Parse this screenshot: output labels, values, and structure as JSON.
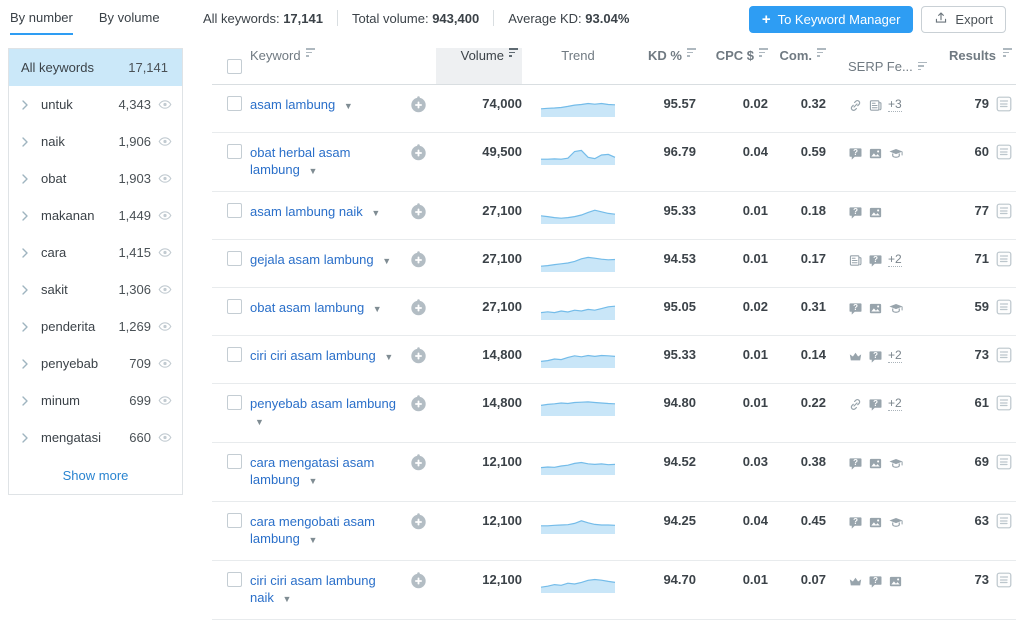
{
  "topbar": {
    "tabs": [
      {
        "label": "By number",
        "active": true
      },
      {
        "label": "By volume",
        "active": false
      }
    ],
    "stats": [
      {
        "label": "All keywords:",
        "value": "17,141"
      },
      {
        "label": "Total volume:",
        "value": "943,400"
      },
      {
        "label": "Average KD:",
        "value": "93.04%"
      }
    ],
    "keyword_manager_button": "To Keyword Manager",
    "export_button": "Export"
  },
  "sidebar": {
    "header": {
      "label": "All keywords",
      "count": "17,141"
    },
    "items": [
      {
        "label": "untuk",
        "count": "4,343"
      },
      {
        "label": "naik",
        "count": "1,906"
      },
      {
        "label": "obat",
        "count": "1,903"
      },
      {
        "label": "makanan",
        "count": "1,449"
      },
      {
        "label": "cara",
        "count": "1,415"
      },
      {
        "label": "sakit",
        "count": "1,306"
      },
      {
        "label": "penderita",
        "count": "1,269"
      },
      {
        "label": "penyebab",
        "count": "709"
      },
      {
        "label": "minum",
        "count": "699"
      },
      {
        "label": "mengatasi",
        "count": "660"
      }
    ],
    "show_more": "Show more"
  },
  "table": {
    "columns": {
      "keyword": "Keyword",
      "volume": "Volume",
      "trend": "Trend",
      "kd": "KD %",
      "cpc": "CPC $",
      "com": "Com.",
      "serp": "SERP Fe...",
      "results": "Results"
    },
    "rows": [
      {
        "keyword": "asam lambung",
        "volume": "74,000",
        "kd": "95.57",
        "cpc": "0.02",
        "com": "0.32",
        "serp_features": [
          "link",
          "news"
        ],
        "serp_more": "+3",
        "results": "79",
        "trend": [
          0.45,
          0.48,
          0.5,
          0.53,
          0.6,
          0.68,
          0.72,
          0.78,
          0.74,
          0.78,
          0.72,
          0.7
        ]
      },
      {
        "keyword": "obat herbal asam lambung",
        "volume": "49,500",
        "kd": "96.79",
        "cpc": "0.04",
        "com": "0.59",
        "serp_features": [
          "question",
          "image",
          "graduation"
        ],
        "serp_more": null,
        "results": "60",
        "trend": [
          0.3,
          0.3,
          0.32,
          0.3,
          0.36,
          0.78,
          0.85,
          0.42,
          0.34,
          0.56,
          0.6,
          0.42
        ]
      },
      {
        "keyword": "asam lambung naik",
        "volume": "27,100",
        "kd": "95.33",
        "cpc": "0.01",
        "com": "0.18",
        "serp_features": [
          "question",
          "image"
        ],
        "serp_more": null,
        "results": "77",
        "trend": [
          0.45,
          0.4,
          0.34,
          0.3,
          0.34,
          0.4,
          0.5,
          0.66,
          0.8,
          0.7,
          0.6,
          0.55
        ]
      },
      {
        "keyword": "gejala asam lambung",
        "volume": "27,100",
        "kd": "94.53",
        "cpc": "0.01",
        "com": "0.17",
        "serp_features": [
          "news",
          "question"
        ],
        "serp_more": "+2",
        "results": "71",
        "trend": [
          0.3,
          0.34,
          0.4,
          0.45,
          0.5,
          0.6,
          0.76,
          0.85,
          0.8,
          0.74,
          0.7,
          0.72
        ]
      },
      {
        "keyword": "obat asam lambung",
        "volume": "27,100",
        "kd": "95.05",
        "cpc": "0.02",
        "com": "0.31",
        "serp_features": [
          "question",
          "image",
          "graduation"
        ],
        "serp_more": null,
        "results": "59",
        "trend": [
          0.4,
          0.45,
          0.4,
          0.5,
          0.44,
          0.55,
          0.5,
          0.6,
          0.55,
          0.65,
          0.76,
          0.8
        ]
      },
      {
        "keyword": "ciri ciri asam lambung",
        "volume": "14,800",
        "kd": "95.33",
        "cpc": "0.01",
        "com": "0.14",
        "serp_features": [
          "crown",
          "question"
        ],
        "serp_more": "+2",
        "results": "73",
        "trend": [
          0.35,
          0.4,
          0.5,
          0.46,
          0.6,
          0.7,
          0.64,
          0.72,
          0.66,
          0.72,
          0.7,
          0.66
        ]
      },
      {
        "keyword": "penyebab asam lambung",
        "volume": "14,800",
        "kd": "94.80",
        "cpc": "0.01",
        "com": "0.22",
        "serp_features": [
          "link",
          "question"
        ],
        "serp_more": "+2",
        "results": "61",
        "trend": [
          0.6,
          0.66,
          0.7,
          0.75,
          0.72,
          0.78,
          0.8,
          0.82,
          0.78,
          0.75,
          0.72,
          0.7
        ]
      },
      {
        "keyword": "cara mengatasi asam lambung",
        "volume": "12,100",
        "kd": "94.52",
        "cpc": "0.03",
        "com": "0.38",
        "serp_features": [
          "question",
          "image",
          "graduation"
        ],
        "serp_more": null,
        "results": "69",
        "trend": [
          0.4,
          0.44,
          0.42,
          0.5,
          0.55,
          0.66,
          0.72,
          0.64,
          0.6,
          0.63,
          0.58,
          0.6
        ]
      },
      {
        "keyword": "cara mengobati asam lambung",
        "volume": "12,100",
        "kd": "94.25",
        "cpc": "0.04",
        "com": "0.45",
        "serp_features": [
          "question",
          "image",
          "graduation"
        ],
        "serp_more": null,
        "results": "63",
        "trend": [
          0.45,
          0.45,
          0.48,
          0.5,
          0.52,
          0.6,
          0.76,
          0.64,
          0.54,
          0.5,
          0.5,
          0.48
        ]
      },
      {
        "keyword": "ciri ciri asam lambung naik",
        "volume": "12,100",
        "kd": "94.70",
        "cpc": "0.01",
        "com": "0.07",
        "serp_features": [
          "crown",
          "question",
          "image"
        ],
        "serp_more": null,
        "results": "73",
        "trend": [
          0.3,
          0.36,
          0.46,
          0.42,
          0.55,
          0.5,
          0.6,
          0.73,
          0.78,
          0.74,
          0.66,
          0.6
        ]
      }
    ]
  },
  "colors": {
    "accent_blue": "#2e9df3",
    "link_blue": "#2a6fc9",
    "sidebar_selected": "#cbe8f9",
    "sparkline_fill": "#c9e6f8",
    "sparkline_line": "#74bce9",
    "icon_gray": "#98a4ac"
  }
}
